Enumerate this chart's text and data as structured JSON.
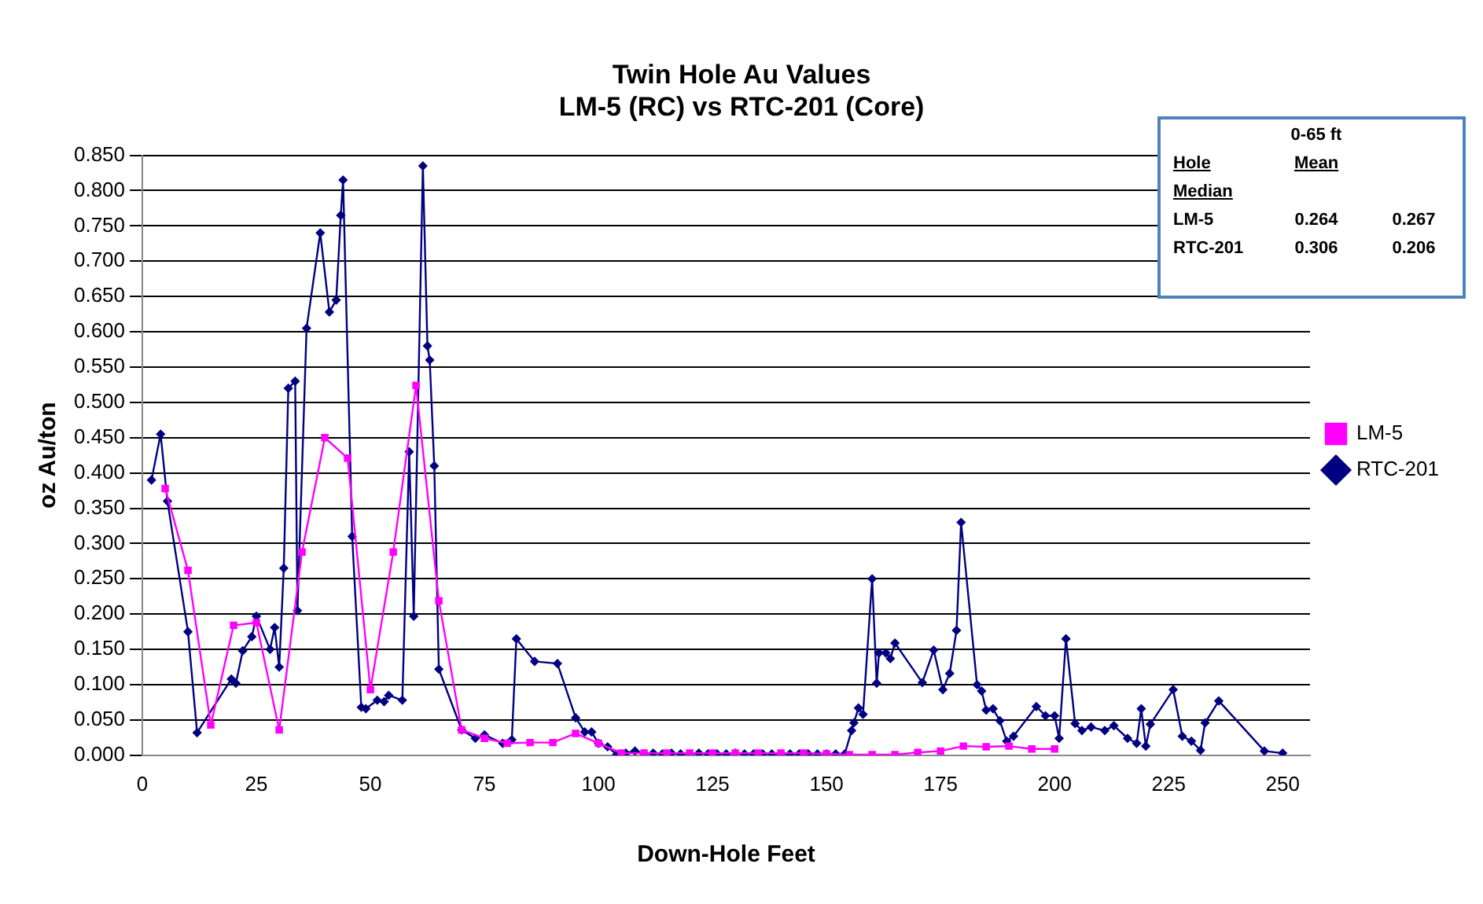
{
  "chart_data": {
    "type": "line",
    "title": "Twin Hole Au Values",
    "subtitle": "LM-5 (RC) vs RTC-201 (Core)",
    "xlabel": "Down-Hole Feet",
    "ylabel": "oz Au/ton",
    "annotations": [
      "0-65 ft",
      "Hole",
      "Mean",
      "Median",
      "LM-5",
      "0.264",
      "0.267",
      "RTC-201",
      "0.306",
      "0.206"
    ],
    "series": [
      {
        "name": "LM-5",
        "color": "#ff00ff",
        "marker": "square",
        "x": [
          5,
          10,
          15,
          20,
          25,
          30,
          35,
          40,
          45,
          50,
          55,
          60,
          65,
          70,
          75,
          80,
          85,
          90,
          95,
          100,
          105,
          110,
          115,
          120,
          125,
          130,
          135,
          140,
          145,
          150,
          155,
          160,
          165,
          170,
          175,
          180,
          185,
          190,
          195,
          200
        ],
        "values": [
          0.378,
          0.262,
          0.043,
          0.184,
          0.188,
          0.036,
          0.288,
          0.45,
          0.421,
          0.093,
          0.288,
          0.524,
          0.219,
          0.036,
          0.024,
          0.017,
          0.018,
          0.018,
          0.031,
          0.017,
          0.003,
          0.003,
          0.003,
          0.003,
          0.003,
          0.003,
          0.003,
          0.003,
          0.003,
          0.002,
          0.001,
          0.001,
          0.001,
          0.004,
          0.006,
          0.013,
          0.012,
          0.013,
          0.009,
          0.009
        ]
      },
      {
        "name": "RTC-201",
        "color": "#000080",
        "marker": "diamond",
        "x": [
          2,
          4,
          5.5,
          10,
          12,
          19.5,
          20.5,
          22,
          24,
          25,
          28,
          29,
          30,
          31,
          32,
          33.5,
          34,
          36,
          39,
          41,
          42.5,
          43.5,
          44,
          46,
          48,
          49,
          51.5,
          53,
          54,
          57,
          58.5,
          59.5,
          61.5,
          62.5,
          63,
          64,
          65,
          70,
          73,
          75,
          79,
          81,
          82,
          86,
          91,
          95,
          97,
          98.5,
          100,
          102,
          104,
          106,
          108,
          110,
          112,
          114,
          116,
          118,
          120,
          122,
          124,
          126,
          128,
          130,
          132,
          134,
          136,
          138,
          140,
          142,
          144,
          146,
          148,
          150,
          152,
          154,
          155.5,
          156,
          157,
          158,
          160,
          161,
          161.5,
          163,
          164,
          165,
          171,
          173.5,
          175.5,
          177,
          178.5,
          179.5,
          183,
          184,
          185,
          186.5,
          188,
          189.5,
          191,
          196,
          198,
          200,
          201,
          202.5,
          204.5,
          206,
          208,
          211,
          213,
          216,
          218,
          219,
          220,
          221,
          226,
          228,
          230,
          232,
          233,
          236,
          246,
          250
        ],
        "values": [
          0.39,
          0.455,
          0.36,
          0.175,
          0.032,
          0.108,
          0.102,
          0.148,
          0.168,
          0.197,
          0.15,
          0.181,
          0.125,
          0.265,
          0.52,
          0.53,
          0.205,
          0.605,
          0.74,
          0.628,
          0.645,
          0.765,
          0.815,
          0.31,
          0.068,
          0.066,
          0.078,
          0.076,
          0.085,
          0.078,
          0.43,
          0.197,
          0.835,
          0.58,
          0.56,
          0.41,
          0.122,
          0.036,
          0.024,
          0.029,
          0.017,
          0.022,
          0.165,
          0.133,
          0.13,
          0.053,
          0.033,
          0.033,
          0.017,
          0.012,
          0.001,
          0.003,
          0.006,
          0.002,
          0.003,
          0.002,
          0.003,
          0.002,
          0.002,
          0.003,
          0.002,
          0.002,
          0.002,
          0.003,
          0.002,
          0.002,
          0.002,
          0.002,
          0.002,
          0.002,
          0.002,
          0.002,
          0.002,
          0.002,
          0.002,
          0.002,
          0.035,
          0.046,
          0.067,
          0.058,
          0.25,
          0.102,
          0.145,
          0.145,
          0.137,
          0.159,
          0.103,
          0.149,
          0.093,
          0.116,
          0.177,
          0.33,
          0.1,
          0.091,
          0.064,
          0.066,
          0.049,
          0.02,
          0.027,
          0.069,
          0.056,
          0.056,
          0.024,
          0.165,
          0.045,
          0.035,
          0.04,
          0.035,
          0.042,
          0.024,
          0.017,
          0.066,
          0.013,
          0.044,
          0.093,
          0.027,
          0.02,
          0.007,
          0.046,
          0.077,
          0.006,
          0.003
        ]
      }
    ],
    "xlim": [
      0,
      256
    ],
    "xticks": [
      0,
      25,
      50,
      75,
      100,
      125,
      150,
      175,
      200,
      225,
      250
    ],
    "ylim": [
      0,
      0.85
    ],
    "yticks": [
      {
        "value": 0,
        "label": "0.000"
      },
      {
        "value": 0.05,
        "label": "0.050"
      },
      {
        "value": 0.1,
        "label": "0.100"
      },
      {
        "value": 0.15,
        "label": "0.150"
      },
      {
        "value": 0.2,
        "label": "0.200"
      },
      {
        "value": 0.25,
        "label": "0.250"
      },
      {
        "value": 0.3,
        "label": "0.300"
      },
      {
        "value": 0.35,
        "label": "0.350"
      },
      {
        "value": 0.4,
        "label": "0.400"
      },
      {
        "value": 0.45,
        "label": "0.450"
      },
      {
        "value": 0.5,
        "label": "0.500"
      },
      {
        "value": 0.55,
        "label": "0.550"
      },
      {
        "value": 0.6,
        "label": "0.600"
      },
      {
        "value": 0.65,
        "label": "0.650"
      },
      {
        "value": 0.7,
        "label": "0.700"
      },
      {
        "value": 0.75,
        "label": "0.750"
      },
      {
        "value": 0.8,
        "label": "0.800"
      },
      {
        "value": 0.85,
        "label": "0.850"
      }
    ],
    "grid": "y",
    "legend": "right",
    "line_style": "solid"
  }
}
